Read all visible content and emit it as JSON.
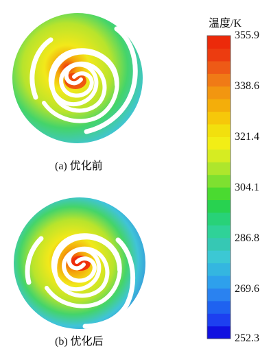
{
  "panels": [
    {
      "id": "a",
      "caption": "(a)  优化前",
      "hotspot_strength": 0.75
    },
    {
      "id": "b",
      "caption": "(b)  优化后",
      "hotspot_strength": 0.95
    }
  ],
  "colorbar": {
    "title": "温度/K",
    "min": 252.3,
    "max": 355.9,
    "ticks": [
      "355.9",
      "338.6",
      "321.4",
      "304.1",
      "286.8",
      "269.6",
      "252.3"
    ],
    "bands": [
      "#1010e0",
      "#1d40f0",
      "#1f62f0",
      "#2a82f0",
      "#2ea0ec",
      "#34b6e0",
      "#3cc8d4",
      "#36c8b4",
      "#2fd298",
      "#28d278",
      "#28d250",
      "#4ada30",
      "#7ee030",
      "#aee62c",
      "#d6ec22",
      "#f2ee16",
      "#f2e00e",
      "#f6c80a",
      "#f4ae0a",
      "#f29610",
      "#f07a16",
      "#ee5a16",
      "#ec3c10",
      "#ec2a0a"
    ],
    "colors": {
      "cold": "#2f7fdd",
      "cyan": "#40c4d8",
      "green": "#44d46a",
      "yellow_green": "#b8e42c",
      "yellow": "#f2e81a",
      "orange": "#f4a20a",
      "red": "#ee2a0c"
    }
  }
}
